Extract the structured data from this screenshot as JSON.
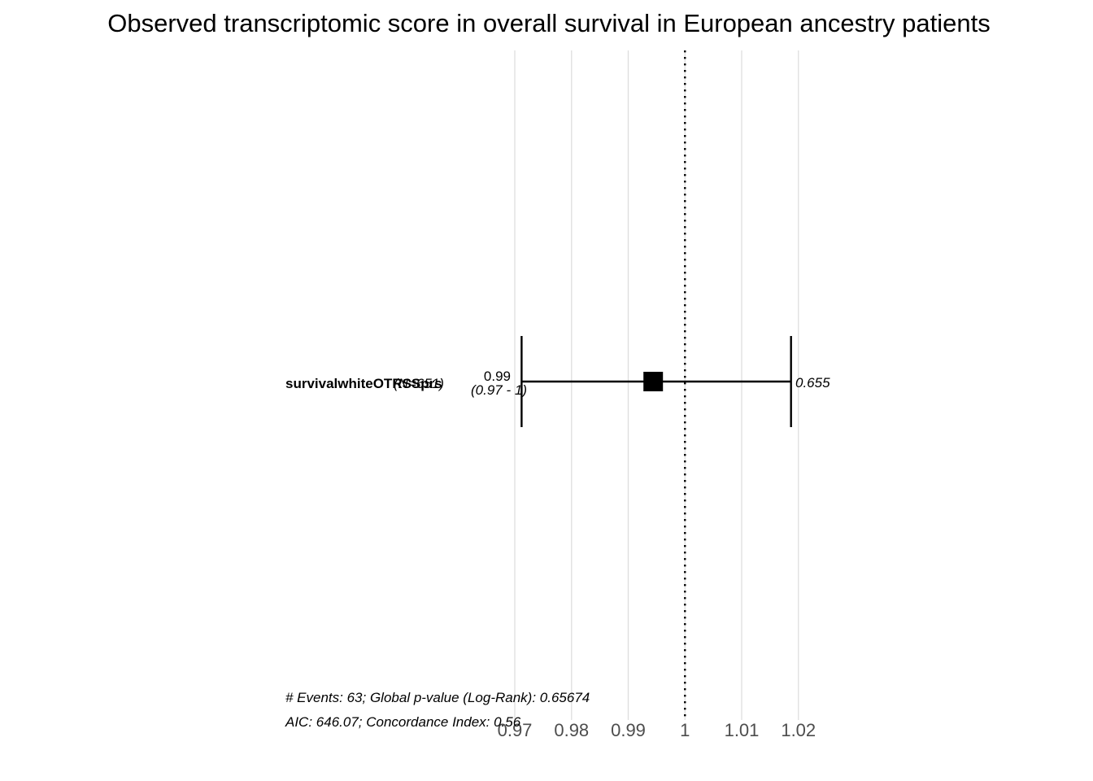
{
  "chart_data": {
    "type": "forest",
    "title": "Observed transcriptomic score in overall survival in European ancestry patients",
    "xlim": [
      0.96885,
      1.0219
    ],
    "x_ticks": [
      0.97,
      0.98,
      0.99,
      1,
      1.01,
      1.02
    ],
    "x_tick_labels": [
      "0.97",
      "0.98",
      "0.99",
      "1",
      "1.01",
      "1.02"
    ],
    "reference_line": 1,
    "grid": true,
    "rows": [
      {
        "variable": "survivalwhiteOTRSSprs",
        "n_label": "(N=651)",
        "hr": 0.9944,
        "ci_low": 0.9712,
        "ci_high": 1.0187,
        "hr_label": "0.99",
        "ci_label": "(0.97 - 1)",
        "p_label": "0.655"
      }
    ],
    "footer_line1": "# Events: 63; Global p-value (Log-Rank): 0.65674",
    "footer_line2": "AIC: 646.07; Concordance Index: 0.56"
  }
}
